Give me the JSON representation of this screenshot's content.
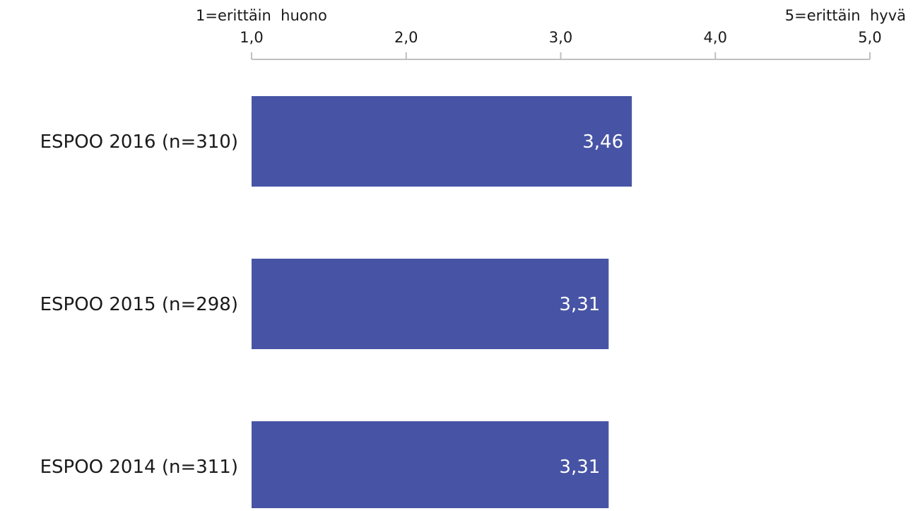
{
  "chart_data": {
    "type": "bar",
    "orientation": "horizontal",
    "title": "",
    "categories": [
      "ESPOO 2016 (n=310)",
      "ESPOO 2015 (n=298)",
      "ESPOO 2014 (n=311)"
    ],
    "values": [
      3.46,
      3.31,
      3.31
    ],
    "data_labels": [
      "3,46",
      "3,31",
      "3,31"
    ],
    "xlim": [
      1.0,
      5.0
    ],
    "ticks": [
      1.0,
      2.0,
      3.0,
      4.0,
      5.0
    ],
    "tick_labels": [
      "1,0",
      "2,0",
      "3,0",
      "4,0",
      "5,0"
    ],
    "scale_low_label": "1=erittäin  huono",
    "scale_high_label": "5=erittäin  hyvä",
    "axis_position": "top",
    "grid": false,
    "bar_color": "#4754a5",
    "label_color": "#ffffff",
    "axis_color": "#bfbfbf",
    "text_color": "#1a1a1a"
  }
}
